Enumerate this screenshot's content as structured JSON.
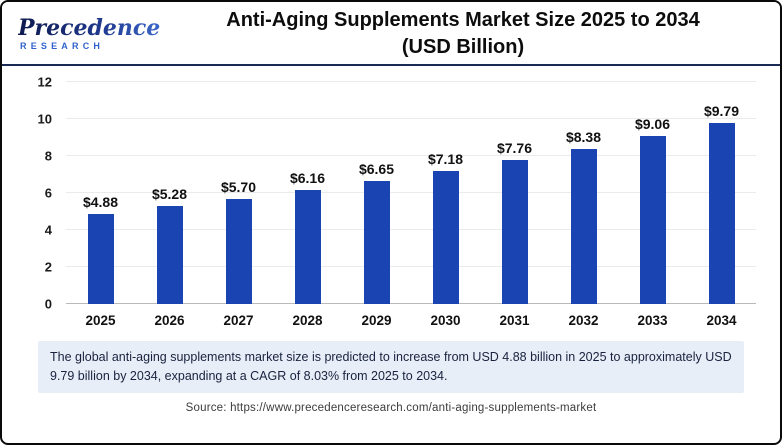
{
  "header": {
    "logo_name": "Precedence",
    "logo_subtitle": "RESEARCH",
    "title_line1": "Anti-Aging Supplements Market Size 2025 to 2034",
    "title_line2": "(USD Billion)"
  },
  "chart_data": {
    "type": "bar",
    "title": "Anti-Aging Supplements Market Size 2025 to 2034 (USD Billion)",
    "categories": [
      "2025",
      "2026",
      "2027",
      "2028",
      "2029",
      "2030",
      "2031",
      "2032",
      "2033",
      "2034"
    ],
    "values": [
      4.88,
      5.28,
      5.7,
      6.16,
      6.65,
      7.18,
      7.76,
      8.38,
      9.06,
      9.79
    ],
    "labels": [
      "$4.88",
      "$5.28",
      "$5.70",
      "$6.16",
      "$6.65",
      "$7.18",
      "$7.76",
      "$8.38",
      "$9.06",
      "$9.79"
    ],
    "xlabel": "",
    "ylabel": "",
    "ylim": [
      0,
      12
    ],
    "yticks": [
      0,
      2,
      4,
      6,
      8,
      10,
      12
    ],
    "grid": true,
    "legend": "none",
    "bar_color": "#1A44B2"
  },
  "summary": {
    "text": "The global anti-aging supplements market size is predicted to increase from USD 4.88 billion in 2025 to approximately USD 9.79 billion by 2034, expanding at a CAGR of 8.03% from 2025 to 2034."
  },
  "source": {
    "text": "Source: https://www.precedenceresearch.com/anti-aging-supplements-market"
  }
}
